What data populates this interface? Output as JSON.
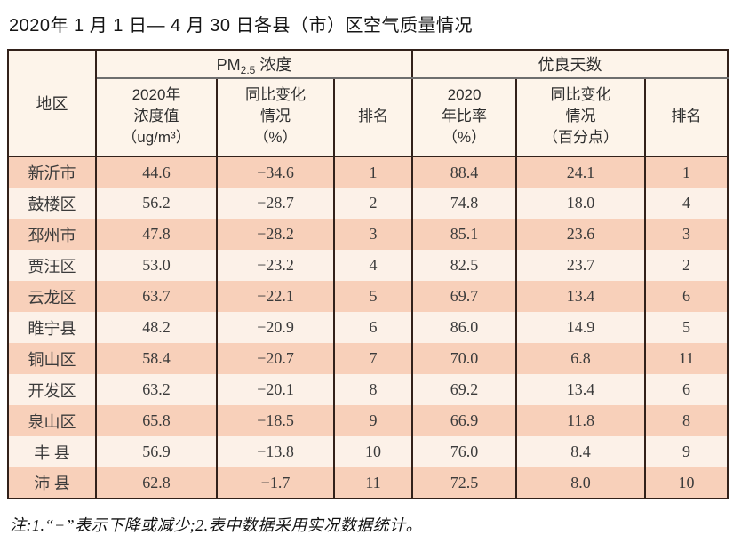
{
  "title": "2020年 1 月 1 日— 4 月 30 日各县（市）区空气质量情况",
  "table": {
    "header": {
      "region": "地区",
      "group_pm": {
        "prefix": "PM",
        "sub": "2.5",
        "suffix": " 浓度"
      },
      "group_good": "优良天数",
      "sub_columns": [
        "2020年\n浓度值\n（ug/m³）",
        "同比变化\n情况\n（%）",
        "排名",
        "2020\n年比率\n（%）",
        "同比变化\n情况\n（百分点）",
        "排名"
      ]
    },
    "row_fields": [
      "region",
      "pm_value",
      "pm_change",
      "pm_rank",
      "good_rate",
      "good_change",
      "good_rank"
    ],
    "rows": [
      {
        "region": "新沂市",
        "pm_value": "44.6",
        "pm_change": "−34.6",
        "pm_rank": "1",
        "good_rate": "88.4",
        "good_change": "24.1",
        "good_rank": "1"
      },
      {
        "region": "鼓楼区",
        "pm_value": "56.2",
        "pm_change": "−28.7",
        "pm_rank": "2",
        "good_rate": "74.8",
        "good_change": "18.0",
        "good_rank": "4"
      },
      {
        "region": "邳州市",
        "pm_value": "47.8",
        "pm_change": "−28.2",
        "pm_rank": "3",
        "good_rate": "85.1",
        "good_change": "23.6",
        "good_rank": "3"
      },
      {
        "region": "贾汪区",
        "pm_value": "53.0",
        "pm_change": "−23.2",
        "pm_rank": "4",
        "good_rate": "82.5",
        "good_change": "23.7",
        "good_rank": "2"
      },
      {
        "region": "云龙区",
        "pm_value": "63.7",
        "pm_change": "−22.1",
        "pm_rank": "5",
        "good_rate": "69.7",
        "good_change": "13.4",
        "good_rank": "6"
      },
      {
        "region": "睢宁县",
        "pm_value": "48.2",
        "pm_change": "−20.9",
        "pm_rank": "6",
        "good_rate": "86.0",
        "good_change": "14.9",
        "good_rank": "5"
      },
      {
        "region": "铜山区",
        "pm_value": "58.4",
        "pm_change": "−20.7",
        "pm_rank": "7",
        "good_rate": "70.0",
        "good_change": "6.8",
        "good_rank": "11"
      },
      {
        "region": "开发区",
        "pm_value": "63.2",
        "pm_change": "−20.1",
        "pm_rank": "8",
        "good_rate": "69.2",
        "good_change": "13.4",
        "good_rank": "6"
      },
      {
        "region": "泉山区",
        "pm_value": "65.8",
        "pm_change": "−18.5",
        "pm_rank": "9",
        "good_rate": "66.9",
        "good_change": "11.8",
        "good_rank": "8"
      },
      {
        "region": "丰 县",
        "pm_value": "56.9",
        "pm_change": "−13.8",
        "pm_rank": "10",
        "good_rate": "76.0",
        "good_change": "8.4",
        "good_rank": "9"
      },
      {
        "region": "沛 县",
        "pm_value": "62.8",
        "pm_change": "−1.7",
        "pm_rank": "11",
        "good_rate": "72.5",
        "good_change": "8.0",
        "good_rank": "10"
      }
    ]
  },
  "footnote": "注:1.“−”表示下降或减少;2.表中数据采用实况数据统计。",
  "colors": {
    "row_odd": "#f8d0ba",
    "row_even": "#fcf1e8",
    "header_bg": "#fdf4ea",
    "border": "#32211a",
    "group_line": "#6e6e6e"
  }
}
